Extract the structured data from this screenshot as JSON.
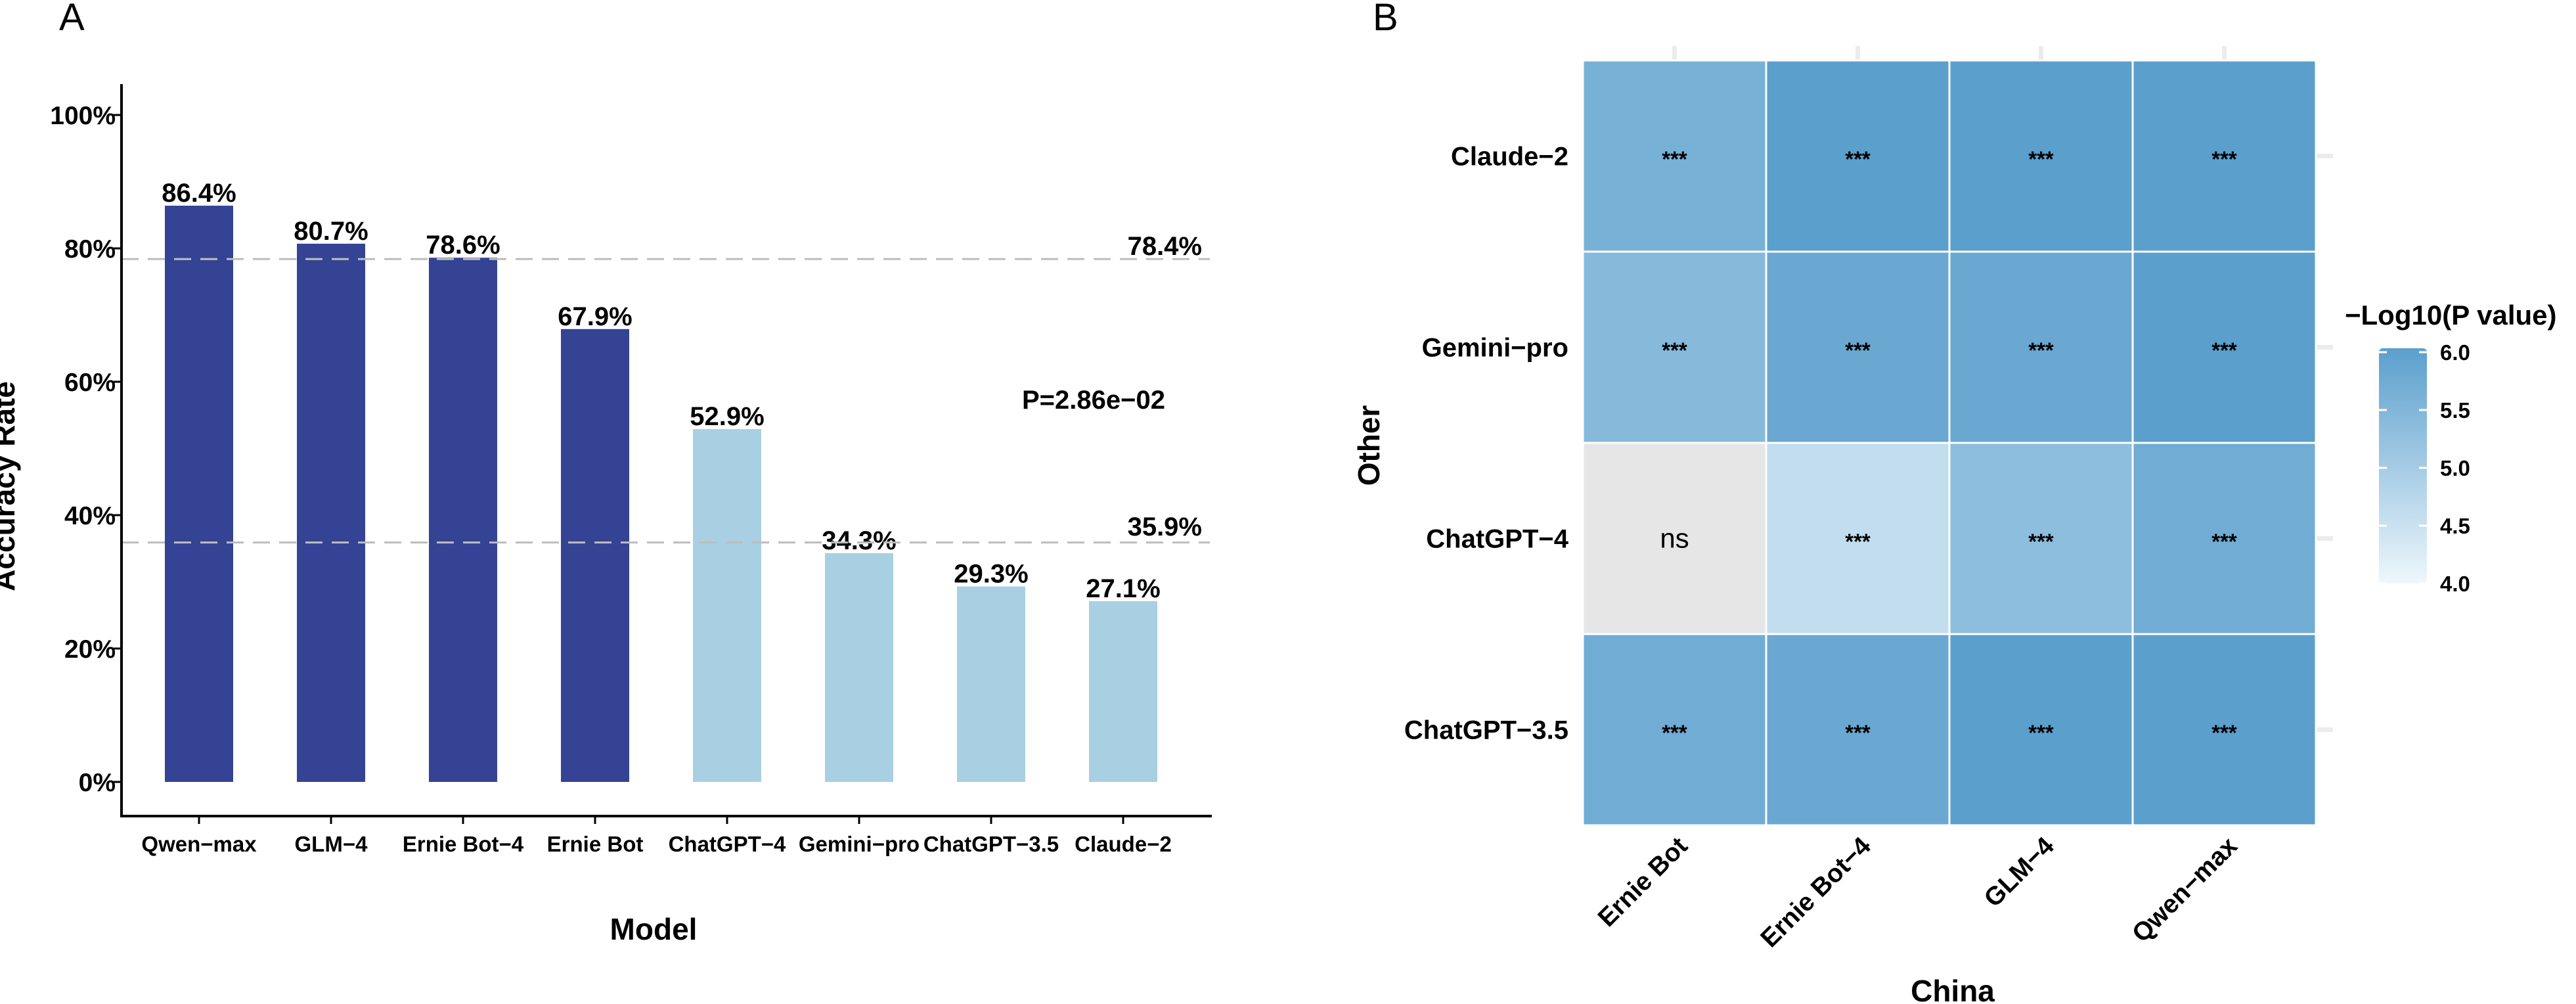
{
  "panel_a": {
    "panel_label": "A",
    "p_value_text": "P=2.86e−02",
    "ref_line_high_label": "78.4%",
    "ref_line_low_label": "35.9%"
  },
  "panel_b": {
    "panel_label": "B"
  },
  "colors": {
    "dark_bar": "#344393",
    "light_bar": "#a9cfe3",
    "ref_high_text": "#3d55a0",
    "ref_low_text": "#a9cfe3",
    "ref_line": "#bdbdbd",
    "ns_cell": "#e6e6e6",
    "scale_low": "#eef7fc",
    "scale_high": "#5b9fcd"
  },
  "chart_data": [
    {
      "type": "bar",
      "title": "",
      "xlabel": "Model",
      "ylabel": "Accuracy Rate",
      "categories": [
        "Qwen−max",
        "GLM−4",
        "Ernie Bot−4",
        "Ernie Bot",
        "ChatGPT−4",
        "Gemini−pro",
        "ChatGPT−3.5",
        "Claude−2"
      ],
      "values": [
        86.4,
        80.7,
        78.6,
        67.9,
        52.9,
        34.3,
        29.3,
        27.1
      ],
      "value_labels": [
        "86.4%",
        "80.7%",
        "78.6%",
        "67.9%",
        "52.9%",
        "34.3%",
        "29.3%",
        "27.1%"
      ],
      "groups": [
        "China",
        "China",
        "China",
        "China",
        "Other",
        "Other",
        "Other",
        "Other"
      ],
      "ylim": [
        0,
        100
      ],
      "yticks": [
        0,
        20,
        40,
        60,
        80,
        100
      ],
      "ytick_labels": [
        "0%",
        "20%",
        "40%",
        "60%",
        "80%",
        "100%"
      ],
      "reference_lines": [
        {
          "value": 78.4,
          "label": "78.4%"
        },
        {
          "value": 35.9,
          "label": "35.9%"
        }
      ],
      "annotation": "P=2.86e−02",
      "grid": false
    },
    {
      "type": "heatmap",
      "title": "",
      "xlabel": "China",
      "ylabel": "Other",
      "x_categories": [
        "Ernie Bot",
        "Ernie Bot−4",
        "GLM−4",
        "Qwen−max"
      ],
      "y_categories": [
        "Claude−2",
        "Gemini−pro",
        "ChatGPT−4",
        "ChatGPT−3.5"
      ],
      "values": [
        [
          5.6,
          6.0,
          6.0,
          6.0
        ],
        [
          5.4,
          5.8,
          5.8,
          6.1
        ],
        [
          null,
          4.6,
          5.3,
          5.7
        ],
        [
          5.7,
          5.8,
          6.0,
          6.2
        ]
      ],
      "cell_labels": [
        [
          "***",
          "***",
          "***",
          "***"
        ],
        [
          "***",
          "***",
          "***",
          "***"
        ],
        [
          "ns",
          "***",
          "***",
          "***"
        ],
        [
          "***",
          "***",
          "***",
          "***"
        ]
      ],
      "legend_title": "−Log10(P value)",
      "legend_range": [
        4.0,
        6.0
      ],
      "legend_ticks": [
        "6.0",
        "5.5",
        "5.0",
        "4.5",
        "4.0"
      ],
      "legend_placement": "right"
    }
  ]
}
